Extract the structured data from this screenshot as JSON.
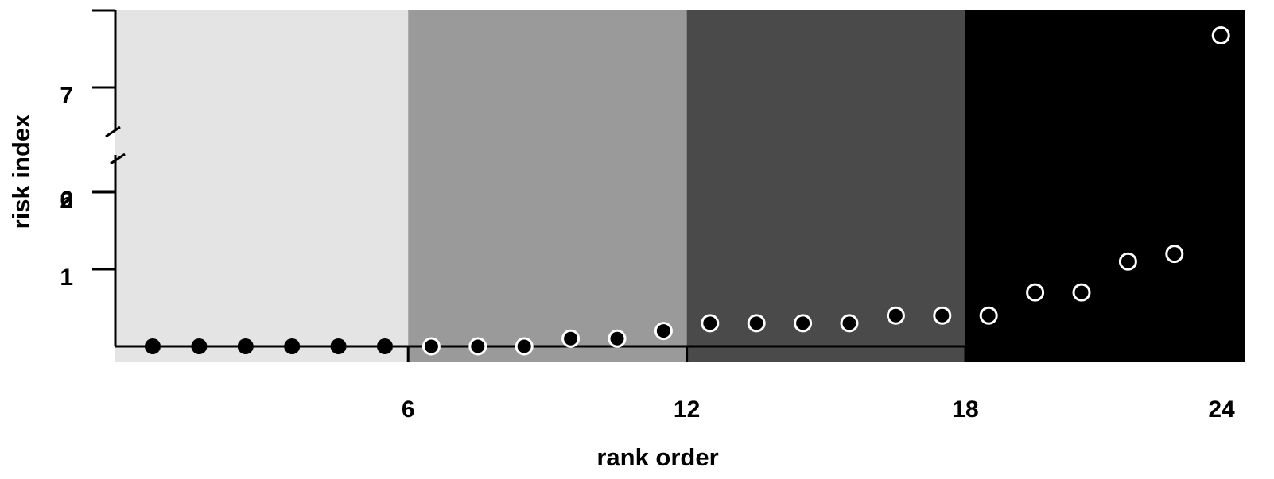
{
  "chart_data": {
    "type": "scatter",
    "title": "",
    "xlabel": "rank order",
    "ylabel": "risk index",
    "x_ticks": [
      "6",
      "12",
      "18",
      "24"
    ],
    "y_ticks": [
      "1",
      "2",
      "6",
      "7"
    ],
    "xlim": [
      0,
      24
    ],
    "y_axis_broken": true,
    "grid": false,
    "background_bands": [
      {
        "x_from": 0,
        "x_to": 6,
        "color": "#e4e4e4"
      },
      {
        "x_from": 6,
        "x_to": 12,
        "color": "#9a9a9a"
      },
      {
        "x_from": 12,
        "x_to": 18,
        "color": "#4a4a4a"
      },
      {
        "x_from": 18,
        "x_to": 24,
        "color": "#000000"
      }
    ],
    "points": [
      {
        "rank": 1,
        "risk": 0.0
      },
      {
        "rank": 2,
        "risk": 0.0
      },
      {
        "rank": 3,
        "risk": 0.0
      },
      {
        "rank": 4,
        "risk": 0.0
      },
      {
        "rank": 5,
        "risk": 0.0
      },
      {
        "rank": 6,
        "risk": 0.0
      },
      {
        "rank": 7,
        "risk": 0.0
      },
      {
        "rank": 8,
        "risk": 0.0
      },
      {
        "rank": 9,
        "risk": 0.0
      },
      {
        "rank": 10,
        "risk": 0.1
      },
      {
        "rank": 11,
        "risk": 0.1
      },
      {
        "rank": 12,
        "risk": 0.2
      },
      {
        "rank": 13,
        "risk": 0.3
      },
      {
        "rank": 14,
        "risk": 0.3
      },
      {
        "rank": 15,
        "risk": 0.3
      },
      {
        "rank": 16,
        "risk": 0.3
      },
      {
        "rank": 17,
        "risk": 0.4
      },
      {
        "rank": 18,
        "risk": 0.4
      },
      {
        "rank": 19,
        "risk": 0.4
      },
      {
        "rank": 20,
        "risk": 0.7
      },
      {
        "rank": 21,
        "risk": 0.7
      },
      {
        "rank": 22,
        "risk": 1.1
      },
      {
        "rank": 23,
        "risk": 1.2
      },
      {
        "rank": 24,
        "risk": 7.5
      }
    ]
  }
}
